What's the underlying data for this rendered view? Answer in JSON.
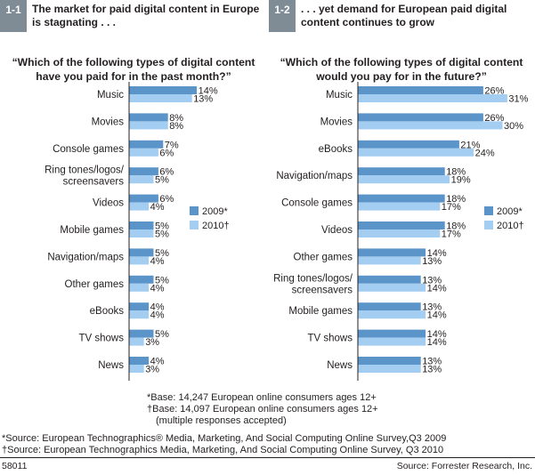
{
  "panels": [
    {
      "num": "1-1",
      "title": "The market for paid digital content in Europe is stagnating . . .",
      "question": "“Which of the following types of digital content have you paid for in the past month?”"
    },
    {
      "num": "1-2",
      "title": ". . . yet demand for European paid digital content continues to grow",
      "question": "“Which of the following types of digital content would you pay for in the future?”"
    }
  ],
  "chart_data": [
    {
      "type": "bar",
      "orientation": "horizontal",
      "categories": [
        "Music",
        "Movies",
        "Console games",
        "Ring tones/logos/\nscreensavers",
        "Videos",
        "Mobile games",
        "Navigation/maps",
        "Other games",
        "eBooks",
        "TV shows",
        "News"
      ],
      "series": [
        {
          "name": "2009*",
          "values": [
            14,
            8,
            7,
            6,
            6,
            5,
            5,
            5,
            4,
            5,
            4
          ]
        },
        {
          "name": "2010†",
          "values": [
            13,
            8,
            6,
            5,
            4,
            5,
            4,
            4,
            4,
            3,
            3
          ]
        }
      ],
      "value_suffix": "%",
      "legend": "right",
      "grid": false
    },
    {
      "type": "bar",
      "orientation": "horizontal",
      "categories": [
        "Music",
        "Movies",
        "eBooks",
        "Navigation/maps",
        "Console games",
        "Videos",
        "Other games",
        "Ring tones/logos/\nscreensavers",
        "Mobile games",
        "TV shows",
        "News"
      ],
      "series": [
        {
          "name": "2009*",
          "values": [
            26,
            26,
            21,
            18,
            18,
            18,
            14,
            13,
            13,
            14,
            13
          ]
        },
        {
          "name": "2010†",
          "values": [
            31,
            30,
            24,
            19,
            17,
            17,
            13,
            14,
            14,
            14,
            13
          ]
        }
      ],
      "value_suffix": "%",
      "legend": "right",
      "grid": false
    }
  ],
  "colors": {
    "series_2009": "#5a94c9",
    "series_2010": "#a3cdf1",
    "header_box": "#7f8c95"
  },
  "base_notes": [
    "*Base: 14,247 European online consumers ages 12+",
    "†Base: 14,097 European online consumers ages 12+",
    "(multiple responses accepted)"
  ],
  "sources": [
    "*Source: European Technographics® Media, Marketing, And Social Computing Online Survey,Q3 2009",
    "†Source: European Technographics Media, Marketing, And Social Computing Online Survey, Q3 2010"
  ],
  "footer": {
    "id": "58011",
    "source": "Source: Forrester Research, Inc."
  }
}
